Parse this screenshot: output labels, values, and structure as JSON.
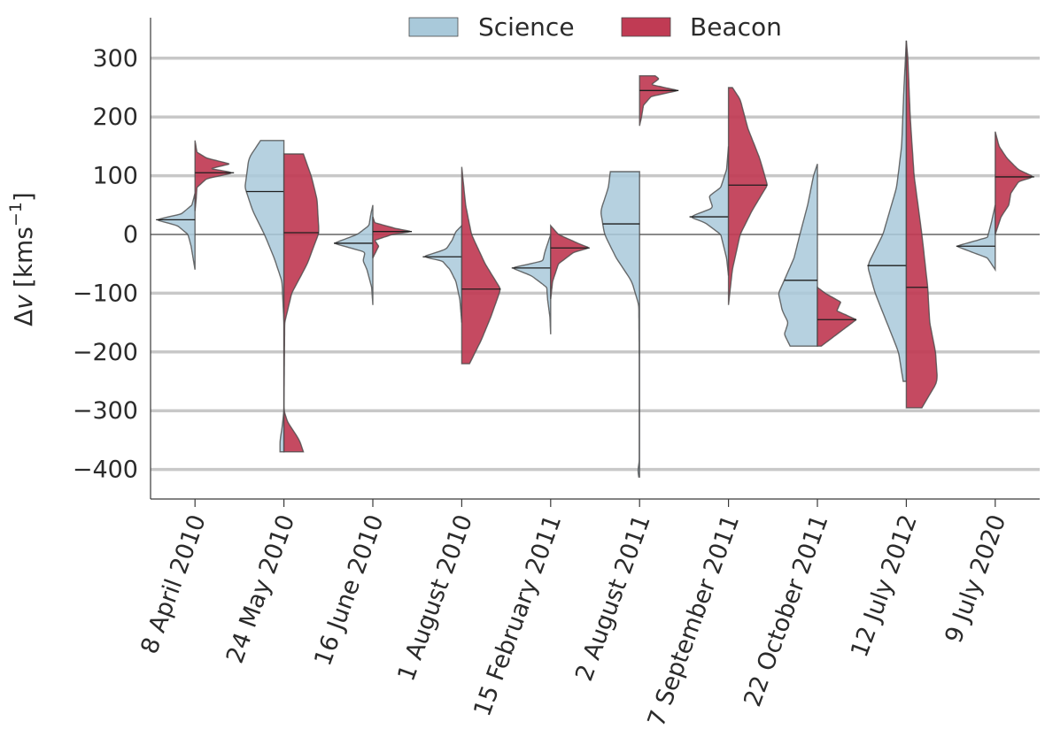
{
  "chart_data": {
    "type": "split-violin",
    "ylabel_prefix": "Δ",
    "ylabel_var": "v",
    "ylabel_unit": "[kms",
    "ylabel_exp": "−1",
    "ylabel_close": "]",
    "ylim": [
      -450,
      365
    ],
    "yticks": [
      300,
      200,
      100,
      0,
      -100,
      -200,
      -300,
      -400
    ],
    "ytick_labels": [
      "300",
      "200",
      "100",
      "0",
      "−100",
      "−200",
      "−300",
      "−400"
    ],
    "grid": true,
    "categories": [
      "8 April 2010",
      "24 May 2010",
      "16 June 2010",
      "1 August 2010",
      "15 February 2011",
      "2 August 2011",
      "7 September 2011",
      "22 October 2011",
      "12 July 2012",
      "9 July 2020"
    ],
    "colors": {
      "science": "#a9c9da",
      "beacon": "#c03b54",
      "edge": "#4a4a4a",
      "grid": "#c8c8c8",
      "zero": "#8a8a8a"
    },
    "legend": {
      "position": "top-center",
      "entries": [
        {
          "name": "Science",
          "color": "#a9c9da"
        },
        {
          "name": "Beacon",
          "color": "#c03b54"
        }
      ]
    },
    "series": [
      {
        "name": "Science",
        "side": "left",
        "violins": [
          {
            "median": 25,
            "profile": [
              [
                -60,
                0.0
              ],
              [
                -40,
                0.05
              ],
              [
                -20,
                0.1
              ],
              [
                0,
                0.18
              ],
              [
                15,
                0.45
              ],
              [
                25,
                1.0
              ],
              [
                35,
                0.35
              ],
              [
                50,
                0.08
              ],
              [
                70,
                0.0
              ]
            ]
          },
          {
            "median": 73,
            "profile": [
              [
                -370,
                0.1
              ],
              [
                -350,
                0.1
              ],
              [
                -330,
                0.05
              ],
              [
                -300,
                0.0
              ],
              [
                -150,
                0.0
              ],
              [
                -80,
                0.05
              ],
              [
                -40,
                0.25
              ],
              [
                0,
                0.5
              ],
              [
                40,
                0.8
              ],
              [
                80,
                1.0
              ],
              [
                130,
                0.9
              ],
              [
                160,
                0.6
              ]
            ]
          },
          {
            "median": -15,
            "profile": [
              [
                -120,
                0.0
              ],
              [
                -90,
                0.03
              ],
              [
                -60,
                0.15
              ],
              [
                -45,
                0.25
              ],
              [
                -30,
                0.2
              ],
              [
                -15,
                1.0
              ],
              [
                0,
                0.4
              ],
              [
                15,
                0.1
              ],
              [
                35,
                0.05
              ],
              [
                50,
                0.0
              ]
            ]
          },
          {
            "median": -38,
            "profile": [
              [
                -150,
                0.0
              ],
              [
                -110,
                0.05
              ],
              [
                -80,
                0.15
              ],
              [
                -60,
                0.3
              ],
              [
                -45,
                0.5
              ],
              [
                -38,
                1.0
              ],
              [
                -25,
                0.4
              ],
              [
                -10,
                0.25
              ],
              [
                5,
                0.15
              ],
              [
                15,
                0.0
              ]
            ]
          },
          {
            "median": -57,
            "profile": [
              [
                -170,
                0.0
              ],
              [
                -140,
                0.02
              ],
              [
                -110,
                0.08
              ],
              [
                -90,
                0.1
              ],
              [
                -70,
                0.5
              ],
              [
                -57,
                1.0
              ],
              [
                -45,
                0.2
              ],
              [
                -30,
                0.15
              ],
              [
                -10,
                0.05
              ],
              [
                0,
                0.0
              ]
            ]
          },
          {
            "median": 18,
            "profile": [
              [
                -413,
                0.02
              ],
              [
                -400,
                0.05
              ],
              [
                -390,
                0.01
              ],
              [
                -200,
                0.01
              ],
              [
                -120,
                0.02
              ],
              [
                -80,
                0.2
              ],
              [
                -40,
                0.6
              ],
              [
                0,
                0.9
              ],
              [
                40,
                1.0
              ],
              [
                80,
                0.8
              ],
              [
                107,
                0.75
              ]
            ]
          },
          {
            "median": 30,
            "profile": [
              [
                -70,
                0.0
              ],
              [
                -40,
                0.05
              ],
              [
                0,
                0.2
              ],
              [
                20,
                0.6
              ],
              [
                30,
                1.0
              ],
              [
                45,
                0.4
              ],
              [
                65,
                0.5
              ],
              [
                80,
                0.2
              ],
              [
                110,
                0.05
              ],
              [
                150,
                0.0
              ]
            ]
          },
          {
            "median": -78,
            "profile": [
              [
                -190,
                0.7
              ],
              [
                -170,
                0.85
              ],
              [
                -150,
                0.75
              ],
              [
                -130,
                0.9
              ],
              [
                -100,
                1.0
              ],
              [
                -78,
                0.85
              ],
              [
                -40,
                0.6
              ],
              [
                0,
                0.45
              ],
              [
                50,
                0.25
              ],
              [
                100,
                0.1
              ],
              [
                120,
                0.0
              ]
            ]
          },
          {
            "median": -53,
            "profile": [
              [
                -250,
                0.08
              ],
              [
                -200,
                0.2
              ],
              [
                -150,
                0.5
              ],
              [
                -100,
                0.8
              ],
              [
                -53,
                1.0
              ],
              [
                0,
                0.6
              ],
              [
                80,
                0.25
              ],
              [
                150,
                0.12
              ],
              [
                250,
                0.06
              ],
              [
                330,
                0.0
              ]
            ]
          },
          {
            "median": -20,
            "profile": [
              [
                -60,
                0.0
              ],
              [
                -40,
                0.2
              ],
              [
                -20,
                1.0
              ],
              [
                -5,
                0.2
              ],
              [
                20,
                0.1
              ],
              [
                50,
                0.0
              ]
            ]
          }
        ]
      },
      {
        "name": "Beacon",
        "side": "right",
        "violins": [
          {
            "median": 105,
            "profile": [
              [
                40,
                0.0
              ],
              [
                60,
                0.03
              ],
              [
                80,
                0.05
              ],
              [
                95,
                0.3
              ],
              [
                105,
                1.0
              ],
              [
                112,
                0.4
              ],
              [
                120,
                0.9
              ],
              [
                130,
                0.3
              ],
              [
                140,
                0.05
              ],
              [
                160,
                0.0
              ]
            ]
          },
          {
            "median": 3,
            "profile": [
              [
                -370,
                0.5
              ],
              [
                -350,
                0.4
              ],
              [
                -320,
                0.1
              ],
              [
                -300,
                0.0
              ],
              [
                -150,
                0.02
              ],
              [
                -100,
                0.2
              ],
              [
                -50,
                0.6
              ],
              [
                3,
                0.9
              ],
              [
                60,
                0.85
              ],
              [
                100,
                0.7
              ],
              [
                137,
                0.5
              ]
            ]
          },
          {
            "median": 5,
            "profile": [
              [
                -40,
                0.0
              ],
              [
                -20,
                0.15
              ],
              [
                -10,
                0.05
              ],
              [
                0,
                0.5
              ],
              [
                5,
                1.0
              ],
              [
                10,
                0.6
              ],
              [
                20,
                0.05
              ],
              [
                30,
                0.0
              ]
            ]
          },
          {
            "median": -93,
            "profile": [
              [
                -220,
                0.2
              ],
              [
                -180,
                0.5
              ],
              [
                -140,
                0.75
              ],
              [
                -93,
                1.0
              ],
              [
                -50,
                0.6
              ],
              [
                0,
                0.25
              ],
              [
                50,
                0.1
              ],
              [
                115,
                0.0
              ]
            ]
          },
          {
            "median": -23,
            "profile": [
              [
                -110,
                0.0
              ],
              [
                -80,
                0.05
              ],
              [
                -50,
                0.2
              ],
              [
                -30,
                0.6
              ],
              [
                -23,
                1.0
              ],
              [
                -15,
                0.7
              ],
              [
                0,
                0.2
              ],
              [
                15,
                0.0
              ]
            ]
          },
          {
            "median": 245,
            "profile": [
              [
                185,
                0.0
              ],
              [
                200,
                0.05
              ],
              [
                220,
                0.1
              ],
              [
                235,
                0.3
              ],
              [
                245,
                1.0
              ],
              [
                255,
                0.3
              ],
              [
                265,
                0.5
              ],
              [
                270,
                0.4
              ]
            ]
          },
          {
            "median": 84,
            "profile": [
              [
                -120,
                0.0
              ],
              [
                -60,
                0.1
              ],
              [
                0,
                0.3
              ],
              [
                40,
                0.6
              ],
              [
                84,
                1.0
              ],
              [
                130,
                0.8
              ],
              [
                180,
                0.5
              ],
              [
                230,
                0.3
              ],
              [
                250,
                0.1
              ]
            ]
          },
          {
            "median": -145,
            "profile": [
              [
                -190,
                0.1
              ],
              [
                -175,
                0.4
              ],
              [
                -160,
                0.7
              ],
              [
                -145,
                1.0
              ],
              [
                -130,
                0.5
              ],
              [
                -115,
                0.6
              ],
              [
                -100,
                0.2
              ],
              [
                -90,
                0.0
              ]
            ]
          },
          {
            "median": -90,
            "profile": [
              [
                -295,
                0.4
              ],
              [
                -250,
                0.8
              ],
              [
                -200,
                0.75
              ],
              [
                -150,
                0.6
              ],
              [
                -90,
                0.55
              ],
              [
                0,
                0.4
              ],
              [
                100,
                0.2
              ],
              [
                200,
                0.1
              ],
              [
                300,
                0.04
              ],
              [
                330,
                0.0
              ]
            ]
          },
          {
            "median": 98,
            "profile": [
              [
                0,
                0.0
              ],
              [
                30,
                0.15
              ],
              [
                50,
                0.35
              ],
              [
                70,
                0.4
              ],
              [
                90,
                0.6
              ],
              [
                98,
                1.0
              ],
              [
                110,
                0.6
              ],
              [
                130,
                0.3
              ],
              [
                150,
                0.1
              ],
              [
                175,
                0.0
              ]
            ]
          }
        ]
      }
    ]
  }
}
